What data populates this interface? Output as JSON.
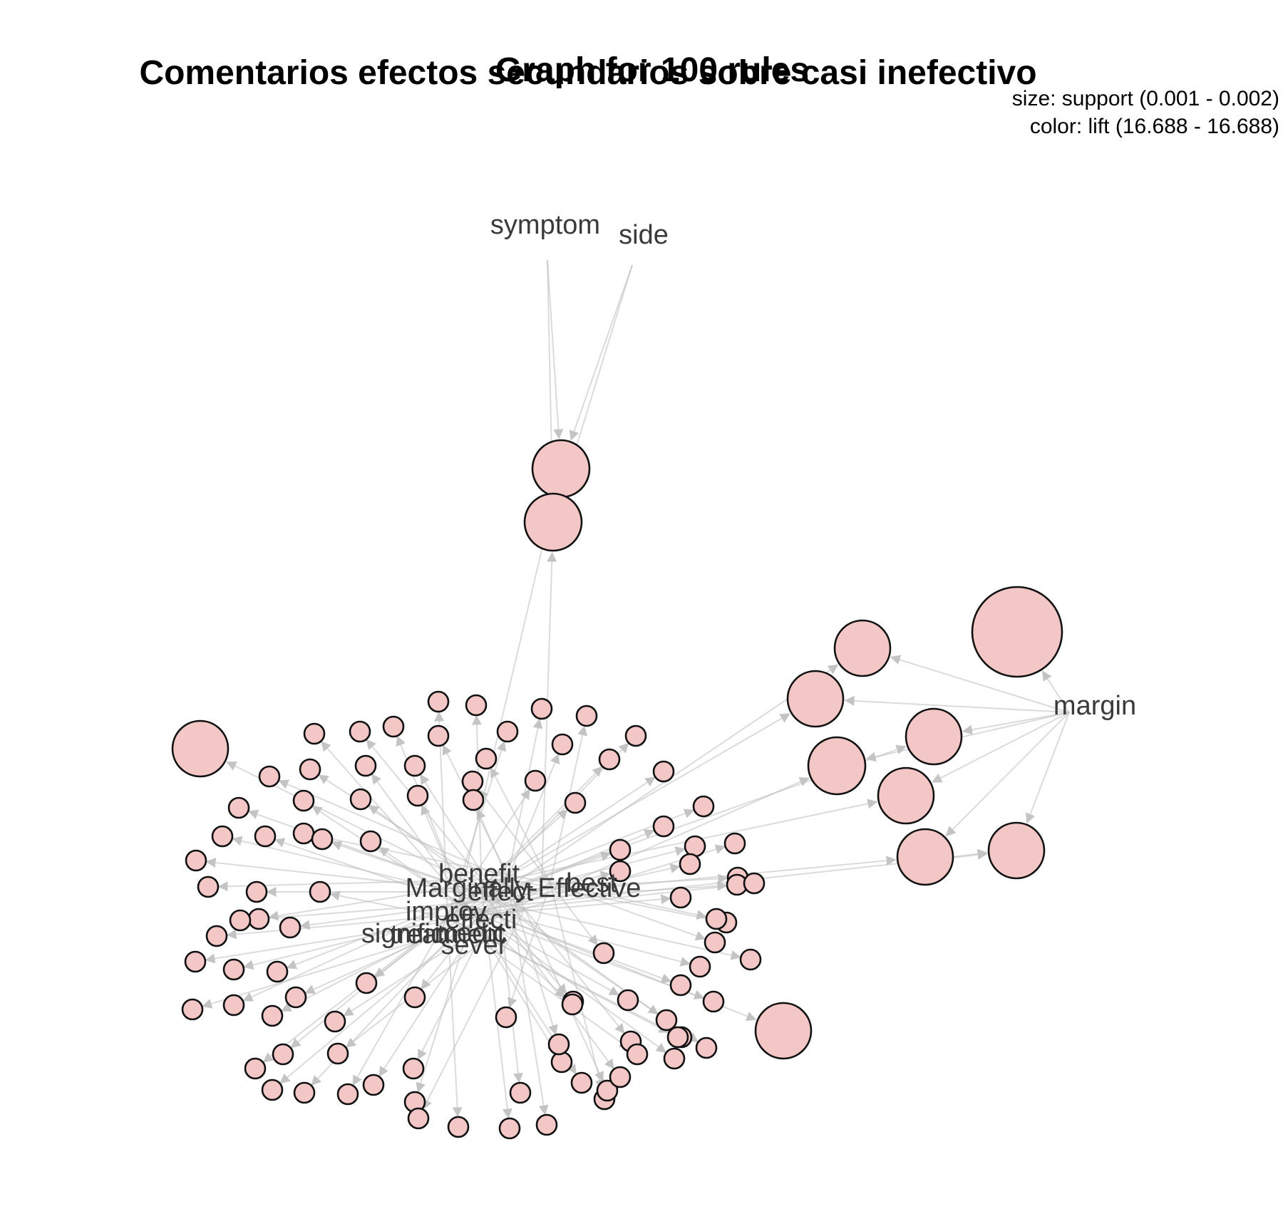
{
  "header": {
    "title_back": "Comentarios efectos secundarios sobre casi inefectivo",
    "title_front": "Graph for 100 rules"
  },
  "legend": {
    "size_label": "size: support (0.001 - 0.002)",
    "color_label": "color: lift (16.688 - 16.688)"
  },
  "colors": {
    "node_fill": "#f4c7c7",
    "node_stroke": "#111111",
    "edge": "#bdbdbd",
    "label": "#3a3a3a"
  },
  "items": [
    {
      "id": "symptom",
      "label": "symptom"
    },
    {
      "id": "side",
      "label": "side"
    },
    {
      "id": "margin",
      "label": "margin"
    },
    {
      "id": "benefit",
      "label": "benefit"
    },
    {
      "id": "marginally_effective",
      "label": "Marginally-Effective"
    },
    {
      "id": "effect",
      "label": "effect"
    },
    {
      "id": "best",
      "label": "best"
    },
    {
      "id": "improv",
      "label": "improv"
    },
    {
      "id": "effecti",
      "label": "effecti"
    },
    {
      "id": "signific",
      "label": "signific"
    },
    {
      "id": "treatment",
      "label": "treatment"
    },
    {
      "id": "medic",
      "label": "medic"
    },
    {
      "id": "sever",
      "label": "sever"
    }
  ]
}
